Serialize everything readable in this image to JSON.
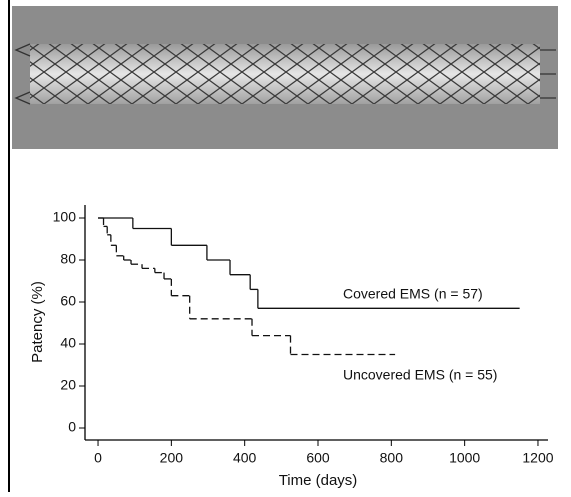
{
  "chart_data": {
    "type": "step",
    "x_label": "Time (days)",
    "y_label": "Patency (%)",
    "xlim": [
      -20,
      1220
    ],
    "xticks": [
      0,
      200,
      400,
      600,
      800,
      1000,
      1200
    ],
    "ylim": [
      -5,
      105
    ],
    "yticks": [
      0,
      20,
      40,
      60,
      80,
      100
    ],
    "series": [
      {
        "name": "Covered EMS (n = 57)",
        "color": "#111111",
        "dash": false,
        "x": [
          0,
          95,
          200,
          297,
          360,
          415,
          436,
          1150
        ],
        "values": [
          100,
          95,
          87,
          80,
          73,
          66,
          57,
          57
        ]
      },
      {
        "name": "Uncovered EMS (n = 55)",
        "color": "#111111",
        "dash": true,
        "x": [
          0,
          15,
          25,
          35,
          50,
          70,
          90,
          120,
          155,
          180,
          200,
          250,
          420,
          525,
          810
        ],
        "values": [
          100,
          96,
          92,
          87,
          82,
          80,
          78,
          76,
          74,
          71,
          63,
          52,
          44,
          35,
          35
        ]
      }
    ]
  }
}
